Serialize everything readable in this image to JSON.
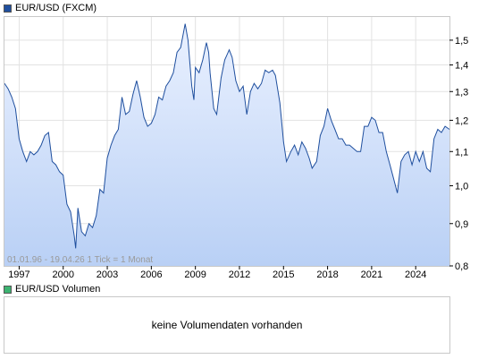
{
  "price_legend": {
    "label": "EUR/USD (FXCM)",
    "color": "#1f4f9e"
  },
  "volume_legend": {
    "label": "EUR/USD Volumen",
    "color": "#3cb371"
  },
  "range_note": "01.01.96 - 19.04.26   1 Tick = 1 Monat",
  "volume_message": "keine Volumendaten vorhanden",
  "chart_data": {
    "type": "area",
    "title": "",
    "xlabel": "",
    "ylabel": "",
    "scale": "log",
    "ylim": [
      0.8,
      1.6
    ],
    "xlim": [
      1996.0,
      2026.3
    ],
    "grid": true,
    "line_color": "#1f4f9e",
    "fill_color_top": "#eaf1ff",
    "fill_color_bottom": "#b9d0f5",
    "x_ticks": [
      {
        "value": 1997,
        "label": "1997"
      },
      {
        "value": 2000,
        "label": "2000"
      },
      {
        "value": 2003,
        "label": "2003"
      },
      {
        "value": 2006,
        "label": "2006"
      },
      {
        "value": 2009,
        "label": "2009"
      },
      {
        "value": 2012,
        "label": "2012"
      },
      {
        "value": 2015,
        "label": "2015"
      },
      {
        "value": 2018,
        "label": "2018"
      },
      {
        "value": 2021,
        "label": "2021"
      },
      {
        "value": 2024,
        "label": "2024"
      }
    ],
    "y_ticks": [
      {
        "value": 0.8,
        "label": "0,8"
      },
      {
        "value": 0.9,
        "label": "0,9"
      },
      {
        "value": 1.0,
        "label": "1,0"
      },
      {
        "value": 1.1,
        "label": "1,1"
      },
      {
        "value": 1.2,
        "label": "1,2"
      },
      {
        "value": 1.3,
        "label": "1,3"
      },
      {
        "value": 1.4,
        "label": "1,4"
      },
      {
        "value": 1.5,
        "label": "1,5"
      }
    ],
    "x": [
      1996.0,
      1996.25,
      1996.5,
      1996.75,
      1997.0,
      1997.25,
      1997.5,
      1997.75,
      1998.0,
      1998.25,
      1998.5,
      1998.75,
      1999.0,
      1999.25,
      1999.5,
      1999.75,
      2000.0,
      2000.25,
      2000.5,
      2000.75,
      2000.85,
      2001.0,
      2001.25,
      2001.5,
      2001.75,
      2002.0,
      2002.25,
      2002.5,
      2002.75,
      2003.0,
      2003.25,
      2003.5,
      2003.75,
      2004.0,
      2004.25,
      2004.5,
      2004.75,
      2005.0,
      2005.25,
      2005.5,
      2005.75,
      2006.0,
      2006.25,
      2006.5,
      2006.75,
      2007.0,
      2007.25,
      2007.5,
      2007.75,
      2008.0,
      2008.3,
      2008.5,
      2008.75,
      2008.9,
      2009.0,
      2009.25,
      2009.5,
      2009.75,
      2009.9,
      2010.0,
      2010.25,
      2010.45,
      2010.75,
      2011.0,
      2011.3,
      2011.5,
      2011.75,
      2012.0,
      2012.25,
      2012.5,
      2012.75,
      2013.0,
      2013.25,
      2013.5,
      2013.75,
      2014.0,
      2014.25,
      2014.45,
      2014.75,
      2015.0,
      2015.2,
      2015.5,
      2015.75,
      2016.0,
      2016.25,
      2016.5,
      2016.75,
      2016.95,
      2017.25,
      2017.5,
      2017.75,
      2018.0,
      2018.25,
      2018.5,
      2018.75,
      2019.0,
      2019.25,
      2019.5,
      2019.75,
      2020.0,
      2020.25,
      2020.5,
      2020.75,
      2021.0,
      2021.25,
      2021.5,
      2021.75,
      2022.0,
      2022.25,
      2022.5,
      2022.75,
      2023.0,
      2023.25,
      2023.5,
      2023.75,
      2024.0,
      2024.25,
      2024.5,
      2024.75,
      2025.0,
      2025.25,
      2025.5,
      2025.75,
      2026.0,
      2026.3
    ],
    "y": [
      1.33,
      1.31,
      1.28,
      1.24,
      1.14,
      1.1,
      1.07,
      1.1,
      1.09,
      1.1,
      1.12,
      1.15,
      1.16,
      1.07,
      1.06,
      1.04,
      1.03,
      0.95,
      0.93,
      0.87,
      0.84,
      0.94,
      0.88,
      0.87,
      0.9,
      0.89,
      0.92,
      0.99,
      0.98,
      1.08,
      1.12,
      1.15,
      1.17,
      1.28,
      1.22,
      1.23,
      1.29,
      1.34,
      1.28,
      1.21,
      1.18,
      1.19,
      1.22,
      1.28,
      1.27,
      1.32,
      1.34,
      1.37,
      1.45,
      1.47,
      1.57,
      1.5,
      1.32,
      1.27,
      1.39,
      1.37,
      1.42,
      1.49,
      1.45,
      1.37,
      1.24,
      1.22,
      1.35,
      1.42,
      1.46,
      1.43,
      1.34,
      1.3,
      1.32,
      1.22,
      1.3,
      1.33,
      1.31,
      1.33,
      1.38,
      1.37,
      1.38,
      1.36,
      1.26,
      1.13,
      1.07,
      1.1,
      1.12,
      1.09,
      1.13,
      1.11,
      1.08,
      1.05,
      1.07,
      1.15,
      1.18,
      1.24,
      1.2,
      1.17,
      1.14,
      1.14,
      1.12,
      1.12,
      1.11,
      1.1,
      1.1,
      1.18,
      1.18,
      1.21,
      1.2,
      1.16,
      1.16,
      1.1,
      1.06,
      1.02,
      0.98,
      1.07,
      1.09,
      1.1,
      1.06,
      1.1,
      1.07,
      1.1,
      1.05,
      1.04,
      1.14,
      1.17,
      1.16,
      1.18,
      1.17
    ]
  }
}
